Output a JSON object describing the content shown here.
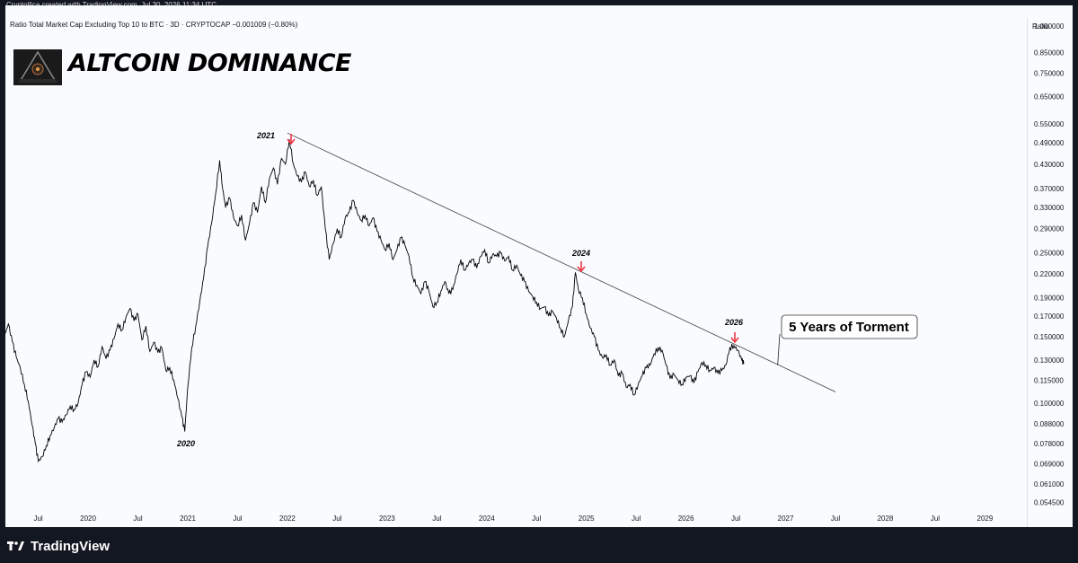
{
  "credit": "Cryptollica created with TradingView.com, Jul 30, 2026 11:34 UTC",
  "symbol_line": "Ratio Total Market Cap Excluding Top 10 to BTC · 3D · CRYPTOCAP  −0.001009 (−0.80%)",
  "title": "ALTCOIN DOMINANCE",
  "footer": {
    "brand": "TradingView",
    "logo_icon": "tradingview-logo-icon"
  },
  "colors": {
    "frame": "#131722",
    "panel": "#f9fbfe",
    "price_line": "#000000",
    "trend_line": "#555555",
    "arrow": "#f23645"
  },
  "chart_data": {
    "type": "line",
    "y_axis_label": "Ratio",
    "y_scale": "log",
    "ylim": [
      0.052,
      1.05
    ],
    "y_ticks": [
      "1.000000",
      "0.850000",
      "0.750000",
      "0.650000",
      "0.550000",
      "0.490000",
      "0.430000",
      "0.370000",
      "0.330000",
      "0.290000",
      "0.250000",
      "0.220000",
      "0.190000",
      "0.170000",
      "0.150000",
      "0.130000",
      "0.115000",
      "0.100000",
      "0.088000",
      "0.078000",
      "0.069000",
      "0.061000",
      "0.054500"
    ],
    "x_ticks": [
      "Jul",
      "2020",
      "Jul",
      "2021",
      "Jul",
      "2022",
      "Jul",
      "2023",
      "Jul",
      "2024",
      "Jul",
      "2025",
      "Jul",
      "2026",
      "Jul",
      "2027",
      "Jul",
      "2028",
      "Jul",
      "2029"
    ],
    "x_tick_dates": [
      2019.5,
      2020,
      2020.5,
      2021,
      2021.5,
      2022,
      2022.5,
      2023,
      2023.5,
      2024,
      2024.5,
      2025,
      2025.5,
      2026,
      2026.5,
      2027,
      2027.5,
      2028,
      2028.5,
      2029
    ],
    "xlim": [
      2019.17,
      2029.42
    ],
    "grid": false,
    "series": [
      {
        "values": [
          [
            2019.17,
            0.153
          ],
          [
            2019.2,
            0.162
          ],
          [
            2019.24,
            0.145
          ],
          [
            2019.28,
            0.132
          ],
          [
            2019.32,
            0.124
          ],
          [
            2019.36,
            0.112
          ],
          [
            2019.4,
            0.101
          ],
          [
            2019.44,
            0.087
          ],
          [
            2019.47,
            0.078
          ],
          [
            2019.5,
            0.07
          ],
          [
            2019.54,
            0.072
          ],
          [
            2019.58,
            0.077
          ],
          [
            2019.62,
            0.082
          ],
          [
            2019.66,
            0.086
          ],
          [
            2019.7,
            0.091
          ],
          [
            2019.74,
            0.089
          ],
          [
            2019.78,
            0.093
          ],
          [
            2019.82,
            0.098
          ],
          [
            2019.86,
            0.096
          ],
          [
            2019.9,
            0.1
          ],
          [
            2019.94,
            0.112
          ],
          [
            2019.98,
            0.121
          ],
          [
            2020.02,
            0.117
          ],
          [
            2020.06,
            0.13
          ],
          [
            2020.1,
            0.125
          ],
          [
            2020.14,
            0.141
          ],
          [
            2020.18,
            0.131
          ],
          [
            2020.22,
            0.138
          ],
          [
            2020.26,
            0.148
          ],
          [
            2020.3,
            0.162
          ],
          [
            2020.34,
            0.156
          ],
          [
            2020.38,
            0.169
          ],
          [
            2020.42,
            0.178
          ],
          [
            2020.46,
            0.165
          ],
          [
            2020.5,
            0.172
          ],
          [
            2020.54,
            0.147
          ],
          [
            2020.58,
            0.16
          ],
          [
            2020.62,
            0.137
          ],
          [
            2020.66,
            0.145
          ],
          [
            2020.7,
            0.136
          ],
          [
            2020.74,
            0.14
          ],
          [
            2020.78,
            0.122
          ],
          [
            2020.82,
            0.124
          ],
          [
            2020.86,
            0.115
          ],
          [
            2020.9,
            0.103
          ],
          [
            2020.94,
            0.092
          ],
          [
            2020.97,
            0.084
          ],
          [
            2021.0,
            0.11
          ],
          [
            2021.04,
            0.14
          ],
          [
            2021.08,
            0.16
          ],
          [
            2021.12,
            0.185
          ],
          [
            2021.16,
            0.215
          ],
          [
            2021.2,
            0.26
          ],
          [
            2021.24,
            0.3
          ],
          [
            2021.28,
            0.36
          ],
          [
            2021.32,
            0.44
          ],
          [
            2021.35,
            0.37
          ],
          [
            2021.38,
            0.33
          ],
          [
            2021.42,
            0.35
          ],
          [
            2021.46,
            0.31
          ],
          [
            2021.5,
            0.295
          ],
          [
            2021.54,
            0.315
          ],
          [
            2021.58,
            0.27
          ],
          [
            2021.62,
            0.3
          ],
          [
            2021.66,
            0.34
          ],
          [
            2021.7,
            0.32
          ],
          [
            2021.74,
            0.375
          ],
          [
            2021.78,
            0.34
          ],
          [
            2021.82,
            0.395
          ],
          [
            2021.86,
            0.42
          ],
          [
            2021.9,
            0.38
          ],
          [
            2021.94,
            0.445
          ],
          [
            2021.98,
            0.43
          ],
          [
            2022.02,
            0.5
          ],
          [
            2022.06,
            0.43
          ],
          [
            2022.1,
            0.4
          ],
          [
            2022.14,
            0.385
          ],
          [
            2022.18,
            0.41
          ],
          [
            2022.22,
            0.375
          ],
          [
            2022.26,
            0.39
          ],
          [
            2022.3,
            0.355
          ],
          [
            2022.34,
            0.375
          ],
          [
            2022.38,
            0.29
          ],
          [
            2022.42,
            0.24
          ],
          [
            2022.46,
            0.265
          ],
          [
            2022.5,
            0.29
          ],
          [
            2022.54,
            0.275
          ],
          [
            2022.58,
            0.31
          ],
          [
            2022.62,
            0.32
          ],
          [
            2022.66,
            0.345
          ],
          [
            2022.7,
            0.32
          ],
          [
            2022.74,
            0.305
          ],
          [
            2022.78,
            0.315
          ],
          [
            2022.82,
            0.295
          ],
          [
            2022.86,
            0.31
          ],
          [
            2022.9,
            0.285
          ],
          [
            2022.94,
            0.27
          ],
          [
            2022.98,
            0.255
          ],
          [
            2023.02,
            0.265
          ],
          [
            2023.06,
            0.24
          ],
          [
            2023.1,
            0.255
          ],
          [
            2023.14,
            0.275
          ],
          [
            2023.18,
            0.262
          ],
          [
            2023.22,
            0.245
          ],
          [
            2023.26,
            0.215
          ],
          [
            2023.3,
            0.205
          ],
          [
            2023.34,
            0.195
          ],
          [
            2023.38,
            0.21
          ],
          [
            2023.42,
            0.198
          ],
          [
            2023.46,
            0.18
          ],
          [
            2023.5,
            0.185
          ],
          [
            2023.54,
            0.198
          ],
          [
            2023.58,
            0.21
          ],
          [
            2023.62,
            0.195
          ],
          [
            2023.66,
            0.2
          ],
          [
            2023.7,
            0.22
          ],
          [
            2023.74,
            0.24
          ],
          [
            2023.78,
            0.225
          ],
          [
            2023.82,
            0.235
          ],
          [
            2023.86,
            0.24
          ],
          [
            2023.9,
            0.228
          ],
          [
            2023.94,
            0.245
          ],
          [
            2023.98,
            0.255
          ],
          [
            2024.02,
            0.235
          ],
          [
            2024.06,
            0.248
          ],
          [
            2024.1,
            0.245
          ],
          [
            2024.14,
            0.25
          ],
          [
            2024.18,
            0.238
          ],
          [
            2024.22,
            0.245
          ],
          [
            2024.26,
            0.225
          ],
          [
            2024.3,
            0.232
          ],
          [
            2024.34,
            0.218
          ],
          [
            2024.38,
            0.21
          ],
          [
            2024.42,
            0.198
          ],
          [
            2024.46,
            0.192
          ],
          [
            2024.5,
            0.185
          ],
          [
            2024.54,
            0.178
          ],
          [
            2024.58,
            0.18
          ],
          [
            2024.62,
            0.17
          ],
          [
            2024.66,
            0.175
          ],
          [
            2024.7,
            0.168
          ],
          [
            2024.74,
            0.158
          ],
          [
            2024.78,
            0.15
          ],
          [
            2024.82,
            0.165
          ],
          [
            2024.86,
            0.18
          ],
          [
            2024.89,
            0.222
          ],
          [
            2024.92,
            0.2
          ],
          [
            2024.96,
            0.19
          ],
          [
            2025.0,
            0.172
          ],
          [
            2025.04,
            0.158
          ],
          [
            2025.08,
            0.15
          ],
          [
            2025.12,
            0.138
          ],
          [
            2025.16,
            0.132
          ],
          [
            2025.2,
            0.134
          ],
          [
            2025.24,
            0.126
          ],
          [
            2025.28,
            0.13
          ],
          [
            2025.32,
            0.118
          ],
          [
            2025.36,
            0.12
          ],
          [
            2025.4,
            0.11
          ],
          [
            2025.44,
            0.112
          ],
          [
            2025.48,
            0.105
          ],
          [
            2025.52,
            0.112
          ],
          [
            2025.56,
            0.118
          ],
          [
            2025.6,
            0.124
          ],
          [
            2025.64,
            0.126
          ],
          [
            2025.68,
            0.135
          ],
          [
            2025.72,
            0.14
          ],
          [
            2025.76,
            0.138
          ],
          [
            2025.8,
            0.126
          ],
          [
            2025.84,
            0.116
          ],
          [
            2025.88,
            0.119
          ],
          [
            2025.92,
            0.115
          ],
          [
            2025.96,
            0.112
          ],
          [
            2026.0,
            0.117
          ],
          [
            2026.04,
            0.118
          ],
          [
            2026.08,
            0.113
          ],
          [
            2026.12,
            0.121
          ],
          [
            2026.16,
            0.128
          ],
          [
            2026.2,
            0.126
          ],
          [
            2026.24,
            0.122
          ],
          [
            2026.28,
            0.124
          ],
          [
            2026.32,
            0.12
          ],
          [
            2026.36,
            0.122
          ],
          [
            2026.4,
            0.126
          ],
          [
            2026.44,
            0.14
          ],
          [
            2026.48,
            0.142
          ],
          [
            2026.52,
            0.138
          ],
          [
            2026.56,
            0.13
          ],
          [
            2026.58,
            0.127
          ]
        ]
      }
    ],
    "trendline": {
      "start": [
        2022.0,
        0.52
      ],
      "end": [
        2027.5,
        0.107
      ]
    },
    "annotations": [
      {
        "label": "2021",
        "x": 2022.0,
        "arrow": true
      },
      {
        "label": "2024",
        "x": 2024.89,
        "arrow": true
      },
      {
        "label": "2026",
        "x": 2026.45,
        "arrow": true
      },
      {
        "label": "2020",
        "x": 2020.97,
        "arrow": false
      }
    ],
    "callout": {
      "text": "5 Years of Torment",
      "points_to": [
        2026.92,
        0.126
      ]
    }
  }
}
